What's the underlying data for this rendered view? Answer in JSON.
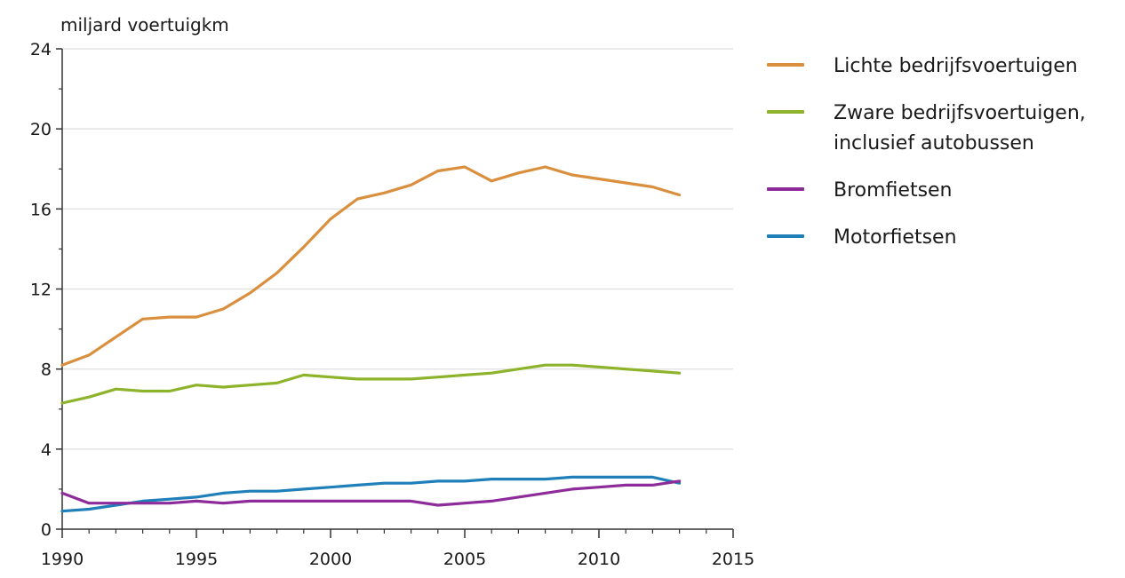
{
  "chart_data": {
    "type": "line",
    "ylabel": "miljard voertuigkm",
    "xlim": [
      1990,
      2015
    ],
    "ylim": [
      0,
      24
    ],
    "xticks": [
      "1990",
      "1995",
      "2000",
      "2005",
      "2010",
      "2015"
    ],
    "yticks": [
      "0",
      "4",
      "8",
      "12",
      "16",
      "20",
      "24"
    ],
    "grid": "horizontal",
    "legend_position": "right",
    "x": [
      1990,
      1991,
      1992,
      1993,
      1994,
      1995,
      1996,
      1997,
      1998,
      1999,
      2000,
      2001,
      2002,
      2003,
      2004,
      2005,
      2006,
      2007,
      2008,
      2009,
      2010,
      2011,
      2012,
      2013
    ],
    "series": [
      {
        "name": "Lichte bedrijfsvoertuigen",
        "color": "#d98f3e",
        "values": [
          8.2,
          8.7,
          9.6,
          10.5,
          10.6,
          10.6,
          11.0,
          11.8,
          12.8,
          14.1,
          15.5,
          16.5,
          16.8,
          17.2,
          17.9,
          18.1,
          17.4,
          17.8,
          18.1,
          17.7,
          17.5,
          17.3,
          17.1,
          16.7
        ]
      },
      {
        "name": "Zware bedrijfsvoertuigen,\ninclusief autobussen",
        "color": "#8db32b",
        "values": [
          6.3,
          6.6,
          7.0,
          6.9,
          6.9,
          7.2,
          7.1,
          7.2,
          7.3,
          7.7,
          7.6,
          7.5,
          7.5,
          7.5,
          7.6,
          7.7,
          7.8,
          8.0,
          8.2,
          8.2,
          8.1,
          8.0,
          7.9,
          7.8
        ]
      },
      {
        "name": "Bromfietsen",
        "color": "#8e2b9b",
        "values": [
          1.8,
          1.3,
          1.3,
          1.3,
          1.3,
          1.4,
          1.3,
          1.4,
          1.4,
          1.4,
          1.4,
          1.4,
          1.4,
          1.4,
          1.2,
          1.3,
          1.4,
          1.6,
          1.8,
          2.0,
          2.1,
          2.2,
          2.2,
          2.4
        ]
      },
      {
        "name": "Motorfietsen",
        "color": "#1f7fb9",
        "values": [
          0.9,
          1.0,
          1.2,
          1.4,
          1.5,
          1.6,
          1.8,
          1.9,
          1.9,
          2.0,
          2.1,
          2.2,
          2.3,
          2.3,
          2.4,
          2.4,
          2.5,
          2.5,
          2.5,
          2.6,
          2.6,
          2.6,
          2.6,
          2.3
        ]
      }
    ]
  }
}
